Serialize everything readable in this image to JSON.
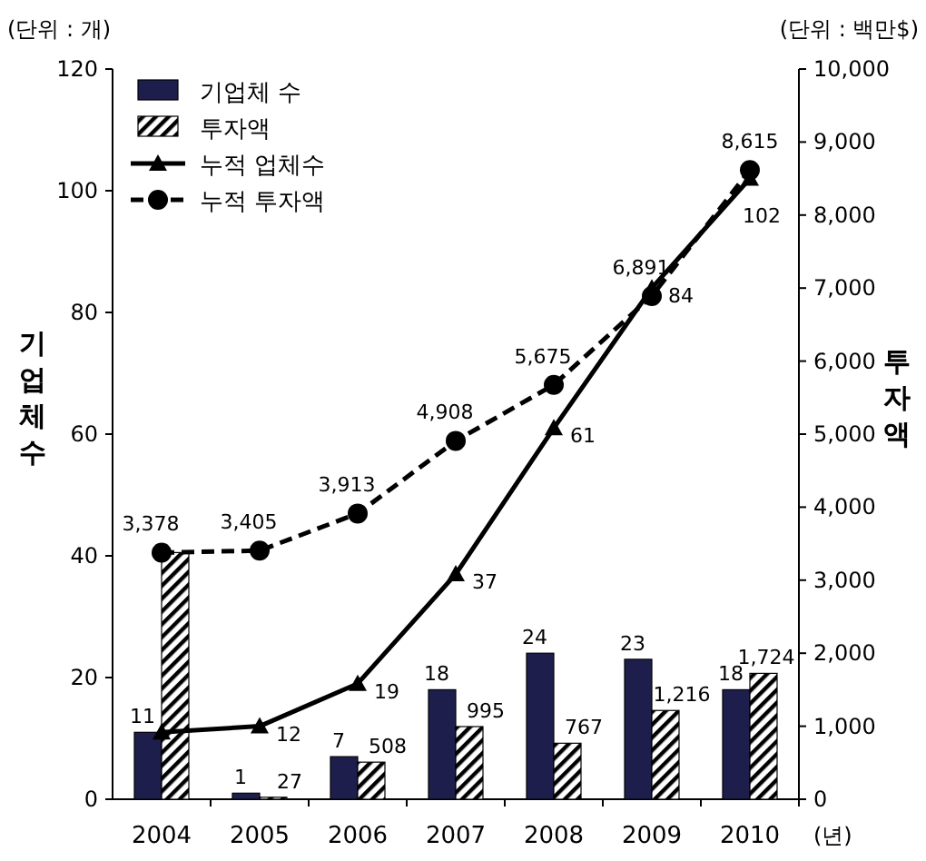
{
  "chart_data": {
    "type": "bar",
    "categories": [
      "2004",
      "2005",
      "2006",
      "2007",
      "2008",
      "2009",
      "2010"
    ],
    "ylabel": "기업체수",
    "y2label": "투자액",
    "ylim": [
      0,
      120
    ],
    "yticks": [
      0,
      20,
      40,
      60,
      80,
      100,
      120
    ],
    "y2lim": [
      0,
      10000
    ],
    "y2ticks": [
      0,
      {
        "value": 1000,
        "label": "1,000"
      },
      {
        "value": 2000,
        "label": "2,000"
      },
      {
        "value": 3000,
        "label": "3,000"
      },
      {
        "value": 4000,
        "label": "4,000"
      },
      {
        "value": 5000,
        "label": "5,000"
      },
      {
        "value": 6000,
        "label": "6,000"
      },
      {
        "value": 7000,
        "label": "7,000"
      },
      {
        "value": 8000,
        "label": "8,000"
      },
      {
        "value": 9000,
        "label": "9,000"
      },
      {
        "value": 10000,
        "label": "10,000"
      }
    ],
    "legend": "top left",
    "annotations": [
      "(단위 : 개)",
      "(단위 : 백만$)",
      "(년)"
    ],
    "series": [
      {
        "name": "기업체 수",
        "color": "#1e1e4c",
        "values": [
          11,
          1,
          7,
          18,
          24,
          23,
          18
        ],
        "value_labels": [
          "11",
          "1",
          "7",
          "18",
          "24",
          "23",
          "18"
        ]
      },
      {
        "name": "투자액",
        "axis": "y2",
        "color": "#000000",
        "values": [
          3378,
          27,
          508,
          995,
          767,
          1216,
          1724
        ],
        "value_labels": [
          null,
          "27",
          "508",
          "995",
          "767",
          "1,216",
          "1,724"
        ]
      },
      {
        "name": "누적 업체수",
        "type": "line",
        "color": "#000000",
        "marker": "triangle",
        "line_style": "solid",
        "values": [
          11,
          12,
          19,
          37,
          61,
          84,
          102
        ],
        "value_labels": [
          null,
          "12",
          "19",
          "37",
          "61",
          "84",
          "102"
        ]
      },
      {
        "name": "누적 투자액",
        "type": "line",
        "axis": "y2",
        "color": "#000000",
        "marker": "circle",
        "line_style": "dashed",
        "values": [
          3378,
          3405,
          3913,
          4908,
          5675,
          6891,
          8615
        ],
        "value_labels": [
          "3,378",
          "3,405",
          "3,913",
          "4,908",
          "5,675",
          "6,891",
          "8,615"
        ]
      }
    ]
  }
}
